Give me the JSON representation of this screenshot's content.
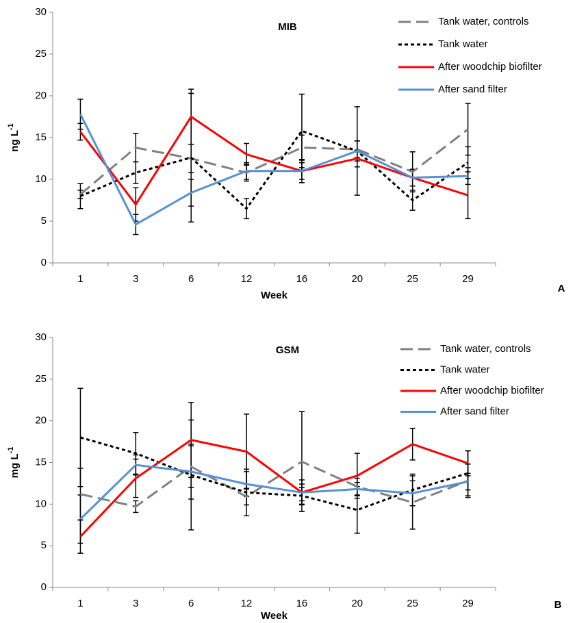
{
  "chart_data": [
    {
      "type": "line",
      "title": "MIB",
      "panel": "A",
      "xlabel": "Week",
      "ylabel": "ng L",
      "ylabel_sup": "-1",
      "categories": [
        "1",
        "3",
        "6",
        "12",
        "16",
        "20",
        "25",
        "29"
      ],
      "ylim": [
        0,
        30
      ],
      "yticks": [
        0,
        5,
        10,
        15,
        20,
        25,
        30
      ],
      "legend": "top-right",
      "series": [
        {
          "name": "Tank water, controls",
          "color": "#808080",
          "dash": "dashed",
          "values": [
            8.2,
            13.8,
            12.5,
            10.8,
            13.8,
            13.6,
            10.9,
            16.0
          ],
          "errors": [
            0.5,
            1.7,
            1.7,
            1.0,
            1.5,
            1.0,
            2.4,
            3.1
          ]
        },
        {
          "name": "Tank water",
          "color": "#000000",
          "dash": "dotted",
          "values": [
            8.0,
            10.8,
            12.6,
            6.5,
            15.8,
            13.4,
            7.5,
            12.0
          ],
          "errors": [
            1.5,
            1.3,
            7.7,
            1.2,
            4.4,
            5.3,
            1.2,
            1.9
          ]
        },
        {
          "name": "After woodchip biofilter",
          "color": "#ff0000",
          "dash": "solid",
          "values": [
            15.7,
            7.0,
            17.5,
            13.0,
            11.0,
            12.5,
            10.2,
            8.1
          ],
          "errors": [
            1.0,
            2.0,
            3.3,
            1.3,
            1.4,
            1.0,
            1.0,
            2.8
          ]
        },
        {
          "name": "After sand filter",
          "color": "#5591d8",
          "dash": "solid",
          "values": [
            17.8,
            4.6,
            8.4,
            11.0,
            11.0,
            13.4,
            10.2,
            10.4
          ],
          "errors": [
            1.8,
            1.2,
            1.6,
            1.0,
            1.0,
            1.2,
            1.0,
            1.0
          ]
        }
      ]
    },
    {
      "type": "line",
      "title": "GSM",
      "panel": "B",
      "xlabel": "Week",
      "ylabel": "mg L",
      "ylabel_sup": "-1",
      "categories": [
        "1",
        "3",
        "6",
        "12",
        "16",
        "20",
        "25",
        "29"
      ],
      "ylim": [
        0,
        30
      ],
      "yticks": [
        0,
        5,
        10,
        15,
        20,
        25,
        30
      ],
      "legend": "top-right",
      "series": [
        {
          "name": "Tank water, controls",
          "color": "#808080",
          "dash": "dashed",
          "values": [
            11.2,
            9.7,
            14.5,
            10.9,
            15.1,
            12.1,
            10.2,
            12.8
          ],
          "errors": [
            3.1,
            0.7,
            2.5,
            1.0,
            6.0,
            1.0,
            3.2,
            2.0
          ]
        },
        {
          "name": "Tank water",
          "color": "#000000",
          "dash": "dotted",
          "values": [
            18.0,
            16.1,
            13.5,
            11.4,
            11.0,
            9.3,
            11.7,
            13.7
          ],
          "errors": [
            5.9,
            2.5,
            6.6,
            2.8,
            1.0,
            2.8,
            1.9,
            2.7
          ]
        },
        {
          "name": "After woodchip biofilter",
          "color": "#ff0000",
          "dash": "solid",
          "values": [
            6.1,
            13.1,
            17.7,
            16.3,
            11.4,
            13.4,
            17.2,
            14.9
          ],
          "errors": [
            2.0,
            2.3,
            4.5,
            4.5,
            1.0,
            2.7,
            1.9,
            1.5
          ]
        },
        {
          "name": "After sand filter",
          "color": "#5591d8",
          "dash": "solid",
          "values": [
            8.2,
            14.7,
            13.9,
            12.4,
            11.4,
            11.8,
            11.3,
            12.7
          ],
          "errors": [
            2.9,
            1.2,
            3.3,
            1.5,
            1.5,
            0.8,
            1.5,
            1.0
          ]
        }
      ]
    }
  ]
}
